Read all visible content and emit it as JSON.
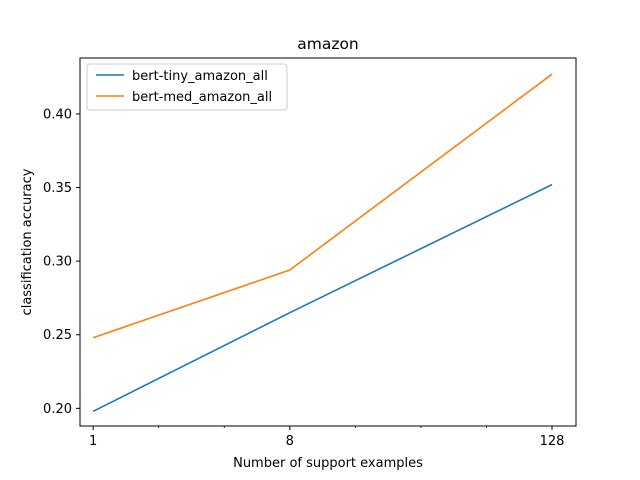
{
  "chart_data": {
    "type": "line",
    "title": "amazon",
    "xlabel": "Number of support examples",
    "ylabel": "classification accuracy",
    "x_scale": "log2",
    "x": [
      1,
      8,
      128
    ],
    "x_tick_labels": [
      "1",
      "8",
      "128"
    ],
    "xlim": [
      0.87,
      165
    ],
    "ylim": [
      0.188,
      0.438
    ],
    "y_ticks": [
      0.2,
      0.25,
      0.3,
      0.35,
      0.4
    ],
    "y_tick_labels": [
      "0.20",
      "0.25",
      "0.30",
      "0.35",
      "0.40"
    ],
    "grid": false,
    "legend_position": "upper-left",
    "series": [
      {
        "name": "bert-tiny_amazon_all",
        "color": "#1f77b4",
        "values": [
          0.198,
          0.265,
          0.352
        ]
      },
      {
        "name": "bert-med_amazon_all",
        "color": "#ff7f0e",
        "values": [
          0.248,
          0.294,
          0.427
        ]
      }
    ]
  }
}
